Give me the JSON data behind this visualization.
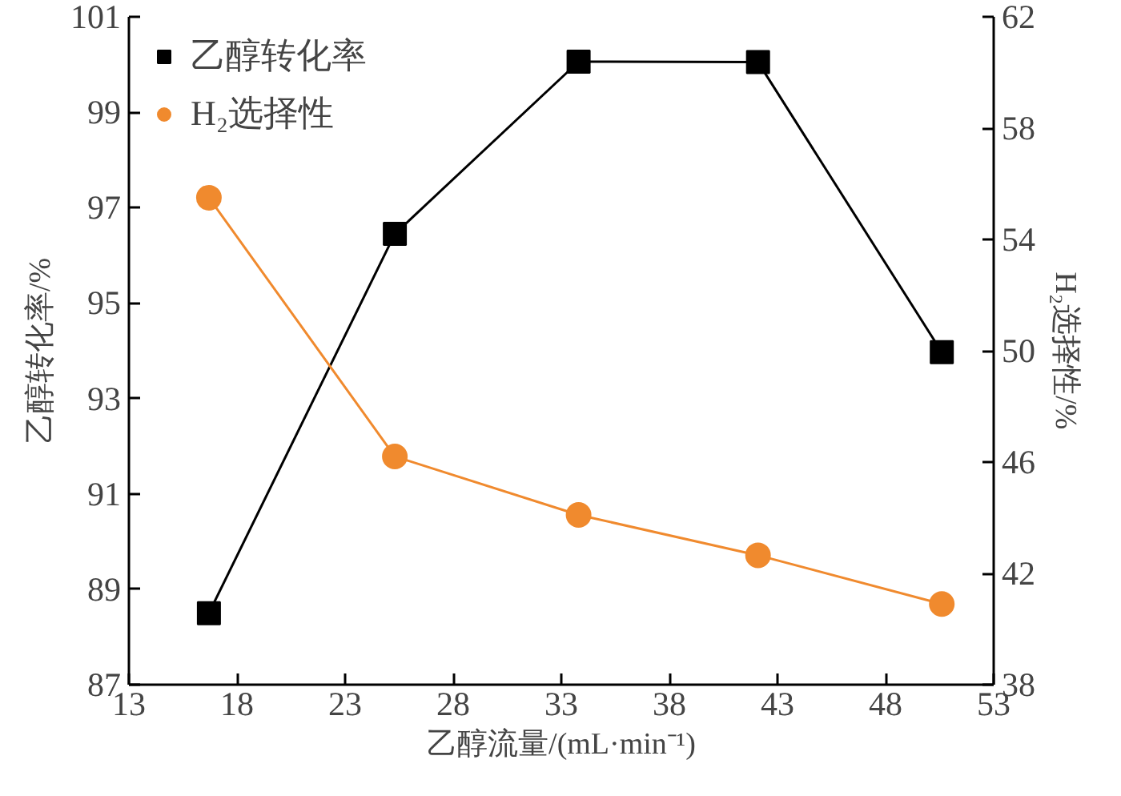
{
  "chart_data": {
    "type": "line",
    "xlabel": "乙醇流量/(mL·min⁻¹)",
    "ylabel": "乙醇转化率/%",
    "y2label": "H₂选择性/%",
    "x": [
      16.7,
      25.3,
      33.8,
      42.1,
      50.6
    ],
    "series": [
      {
        "name": "乙醇转化率",
        "color": "#000000",
        "marker": "square",
        "values": [
          88.5,
          96.45,
          100.06,
          100.05,
          93.97
        ]
      },
      {
        "name": "H₂选择性",
        "color": "#f08a2e",
        "marker": "circle",
        "axis": "y2",
        "values": [
          55.5,
          46.2,
          44.1,
          42.65,
          40.9
        ]
      }
    ],
    "xlim": [
      13,
      53
    ],
    "xticks": [
      13,
      18,
      23,
      28,
      33,
      38,
      43,
      48,
      53
    ],
    "ylim": [
      87,
      101
    ],
    "yticks": [
      87,
      89,
      91,
      93,
      95,
      97,
      99,
      101
    ],
    "y2lim": [
      38,
      62
    ],
    "y2ticks": [
      38,
      42,
      46,
      50,
      54,
      58,
      62
    ],
    "grid": false,
    "legend": "top left",
    "line_style": "solid"
  }
}
